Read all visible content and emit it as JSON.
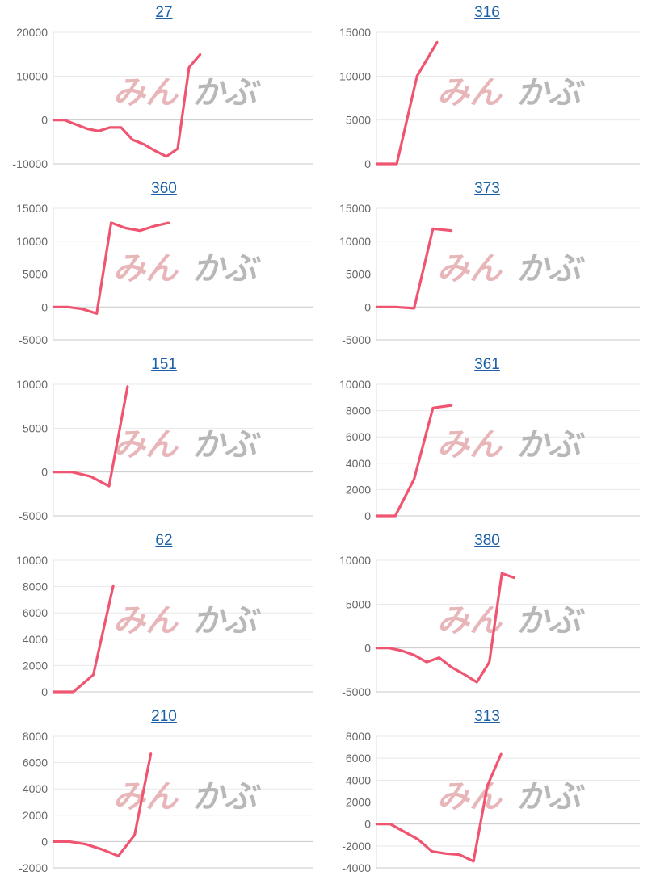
{
  "watermark": {
    "part1": "みん",
    "part2": "かぶ"
  },
  "line_color": "#ef5470",
  "chart_data": [
    {
      "type": "line",
      "title": "27",
      "ylim": [
        -10000,
        20000
      ],
      "yticks": [
        20000,
        10000,
        0,
        -10000
      ],
      "grid": true,
      "values": [
        0,
        0,
        -1000,
        -2000,
        -2500,
        -1700,
        -1700,
        -4500,
        -5500,
        -7000,
        -8300,
        -6500,
        12000,
        15000
      ]
    },
    {
      "type": "line",
      "title": "316",
      "ylim": [
        0,
        15000
      ],
      "yticks": [
        15000,
        10000,
        5000,
        0
      ],
      "grid": true,
      "values": [
        0,
        0,
        10000,
        13900
      ]
    },
    {
      "type": "line",
      "title": "360",
      "ylim": [
        -5000,
        15000
      ],
      "yticks": [
        15000,
        10000,
        5000,
        0,
        -5000
      ],
      "grid": true,
      "values": [
        0,
        0,
        -300,
        -1000,
        12800,
        12000,
        11600,
        12300,
        12800
      ]
    },
    {
      "type": "line",
      "title": "373",
      "ylim": [
        -5000,
        15000
      ],
      "yticks": [
        15000,
        10000,
        5000,
        0,
        -5000
      ],
      "grid": true,
      "values": [
        0,
        0,
        -200,
        11900,
        11600
      ]
    },
    {
      "type": "line",
      "title": "151",
      "ylim": [
        -5000,
        10000
      ],
      "yticks": [
        10000,
        5000,
        0,
        -5000
      ],
      "grid": true,
      "values": [
        0,
        0,
        -500,
        -1600,
        9800
      ]
    },
    {
      "type": "line",
      "title": "361",
      "ylim": [
        0,
        10000
      ],
      "yticks": [
        10000,
        8000,
        6000,
        4000,
        2000,
        0
      ],
      "grid": true,
      "values": [
        0,
        0,
        2800,
        8200,
        8400
      ]
    },
    {
      "type": "line",
      "title": "62",
      "ylim": [
        0,
        10000
      ],
      "yticks": [
        10000,
        8000,
        6000,
        4000,
        2000,
        0
      ],
      "grid": true,
      "values": [
        0,
        0,
        1300,
        8100
      ]
    },
    {
      "type": "line",
      "title": "380",
      "ylim": [
        -5000,
        10000
      ],
      "yticks": [
        10000,
        5000,
        0,
        -5000
      ],
      "grid": true,
      "values": [
        0,
        0,
        -300,
        -800,
        -1600,
        -1100,
        -2200,
        -3000,
        -3900,
        -1600,
        8500,
        8000
      ]
    },
    {
      "type": "line",
      "title": "210",
      "ylim": [
        -2000,
        8000
      ],
      "yticks": [
        8000,
        6000,
        4000,
        2000,
        0,
        -2000
      ],
      "grid": true,
      "values": [
        0,
        0,
        -200,
        -600,
        -1100,
        500,
        6700
      ]
    },
    {
      "type": "line",
      "title": "313",
      "ylim": [
        -4000,
        8000
      ],
      "yticks": [
        8000,
        6000,
        4000,
        2000,
        0,
        -2000,
        -4000
      ],
      "grid": true,
      "values": [
        0,
        0,
        -700,
        -1400,
        -2500,
        -2700,
        -2800,
        -3400,
        3500,
        6400
      ]
    }
  ]
}
